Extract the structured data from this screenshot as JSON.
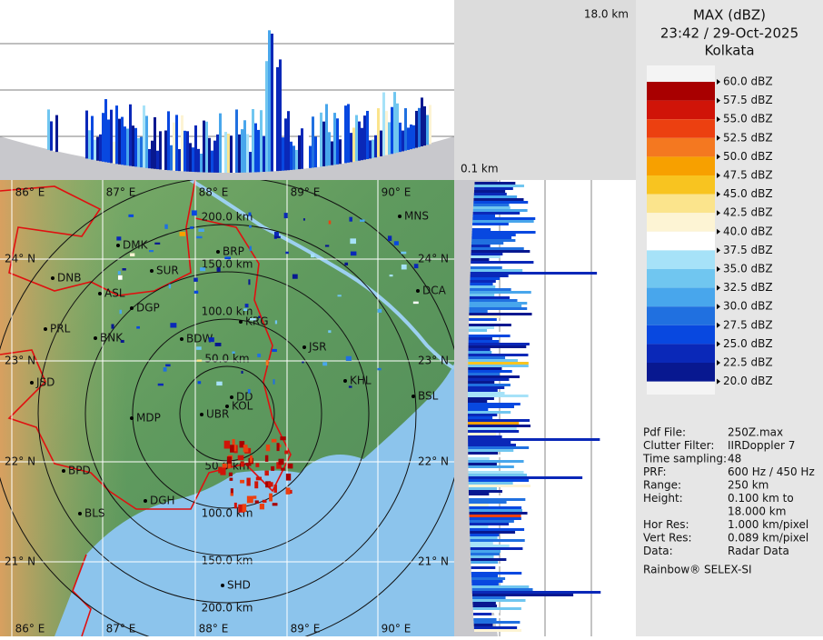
{
  "header": {
    "title": "MAX (dBZ)",
    "time": "23:42 / 29-Oct-2025",
    "station": "Kolkata"
  },
  "section_labels": {
    "top_height": "18.0 km",
    "bottom_height": "0.1 km"
  },
  "legend": [
    {
      "label": "60.0 dBZ",
      "color": "#ffffff"
    },
    {
      "label": "57.5 dBZ",
      "color": "#a80000"
    },
    {
      "label": "55.0 dBZ",
      "color": "#d01408"
    },
    {
      "label": "52.5 dBZ",
      "color": "#ec4010"
    },
    {
      "label": "50.0 dBZ",
      "color": "#f47820"
    },
    {
      "label": "47.5 dBZ",
      "color": "#f7a000"
    },
    {
      "label": "45.0 dBZ",
      "color": "#f8c420"
    },
    {
      "label": "42.5 dBZ",
      "color": "#fbe48c"
    },
    {
      "label": "40.0 dBZ",
      "color": "#fdf4d4"
    },
    {
      "label": "37.5 dBZ",
      "color": "#ffffff"
    },
    {
      "label": "35.0 dBZ",
      "color": "#a6e2f8"
    },
    {
      "label": "32.5 dBZ",
      "color": "#70c6f0"
    },
    {
      "label": "30.0 dBZ",
      "color": "#48a6ec"
    },
    {
      "label": "27.5 dBZ",
      "color": "#2070e0"
    },
    {
      "label": "25.0 dBZ",
      "color": "#0848e0"
    },
    {
      "label": "22.5 dBZ",
      "color": "#0a28b8"
    },
    {
      "label": "20.0 dBZ",
      "color": "#081890"
    }
  ],
  "info": [
    {
      "label": "Pdf File:",
      "value": [
        "250Z.max"
      ]
    },
    {
      "label": "Clutter Filter:",
      "value": [
        "IIRDoppler 7"
      ]
    },
    {
      "label": "Time sampling:",
      "value": [
        "48"
      ]
    },
    {
      "label": "PRF:",
      "value": [
        "600 Hz / 450 Hz"
      ]
    },
    {
      "label": "Range:",
      "value": [
        "250 km"
      ]
    },
    {
      "label": "Height:",
      "value": [
        "0.100 km to",
        "18.000 km"
      ]
    },
    {
      "label": "Hor Res:",
      "value": [
        "1.000 km/pixel"
      ]
    },
    {
      "label": "Vert Res:",
      "value": [
        "0.089 km/pixel"
      ]
    },
    {
      "label": "Data:",
      "value": [
        "Radar Data"
      ]
    }
  ],
  "footer": "Rainbow® SELEX-SI",
  "map": {
    "longitudes": [
      "86° E",
      "87° E",
      "88° E",
      "89° E",
      "90° E"
    ],
    "latitudes": [
      "24° N",
      "23° N",
      "22° N",
      "21° N"
    ],
    "ranges": [
      "50.0 km",
      "100.0 km",
      "150.0 km",
      "200.0 km"
    ],
    "cities": [
      "MNS",
      "DMK",
      "BRP",
      "SUR",
      "DNB",
      "ASL",
      "DGP",
      "DCA",
      "KRG",
      "PRL",
      "BNK",
      "BDW",
      "JSR",
      "KHL",
      "JSD",
      "BSL",
      "DD",
      "KOL",
      "MDP",
      "UBR",
      "BPD",
      "DGH",
      "BLS",
      "SHD"
    ]
  }
}
